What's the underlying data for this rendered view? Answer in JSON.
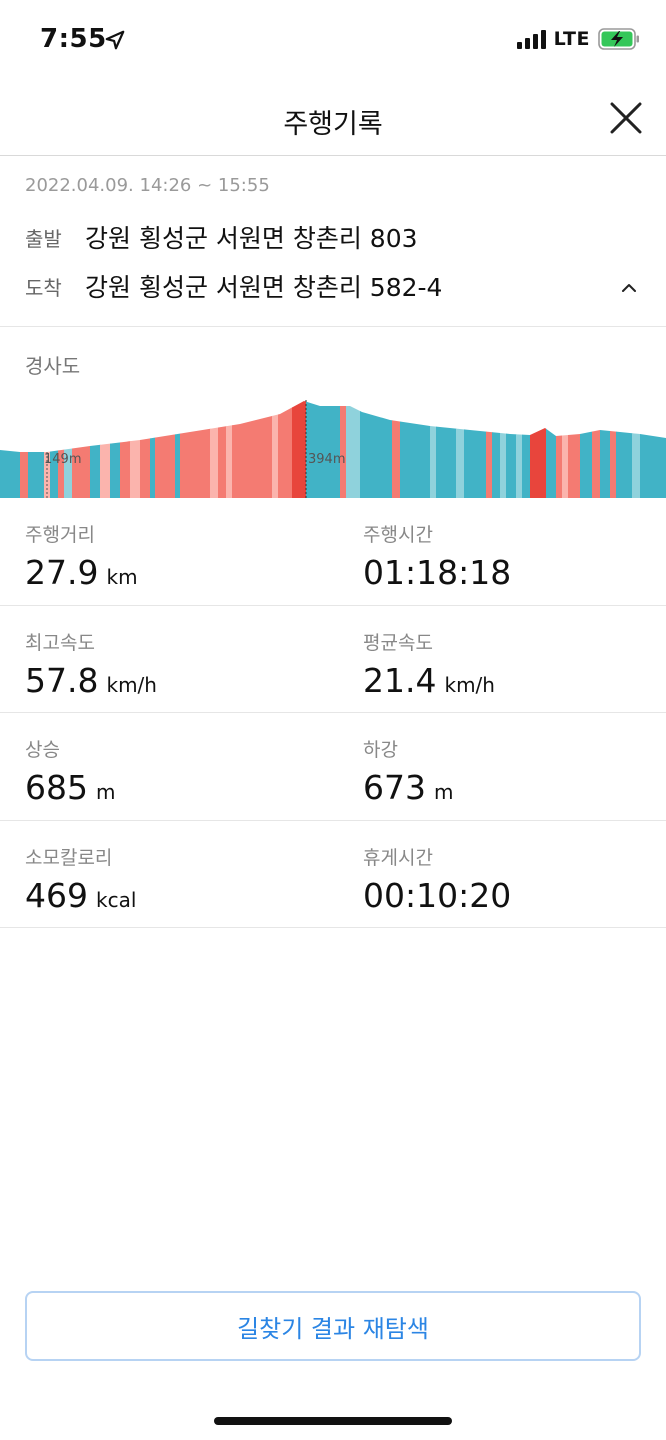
{
  "status_bar": {
    "time": "7:55",
    "network": "LTE",
    "location_icon": "location-arrow-icon",
    "battery_icon": "battery-charging-icon",
    "battery_color": "#34c759"
  },
  "header": {
    "title": "주행기록",
    "close_icon": "close-icon"
  },
  "trip": {
    "date_range": "2022.04.09. 14:26 ~ 15:55",
    "start_label": "출발",
    "start_address": "강원 횡성군 서원면 창촌리 803",
    "end_label": "도착",
    "end_address": "강원 횡성군 서원면 창촌리 582-4",
    "collapse_icon": "chevron-up-icon"
  },
  "slope": {
    "title": "경사도",
    "min_label": "149m",
    "max_label": "394m",
    "colors": {
      "uphill": "#f47b72",
      "uphill_steep": "#e8453c",
      "downhill": "#41b3c6",
      "downhill_light": "#8fd2dc",
      "uphill_light": "#fbb4ad"
    }
  },
  "stats": [
    {
      "left": {
        "label": "주행거리",
        "value": "27.9",
        "unit": "km"
      },
      "right": {
        "label": "주행시간",
        "value": "01:18:18",
        "unit": ""
      }
    },
    {
      "left": {
        "label": "최고속도",
        "value": "57.8",
        "unit": "km/h"
      },
      "right": {
        "label": "평균속도",
        "value": "21.4",
        "unit": "km/h"
      }
    },
    {
      "left": {
        "label": "상승",
        "value": "685",
        "unit": "m"
      },
      "right": {
        "label": "하강",
        "value": "673",
        "unit": "m"
      }
    },
    {
      "left": {
        "label": "소모칼로리",
        "value": "469",
        "unit": "kcal"
      },
      "right": {
        "label": "휴게시간",
        "value": "00:10:20",
        "unit": ""
      }
    }
  ],
  "actions": {
    "reroute_label": "길찾기 결과 재탐색",
    "accent": "#2b85e4"
  }
}
